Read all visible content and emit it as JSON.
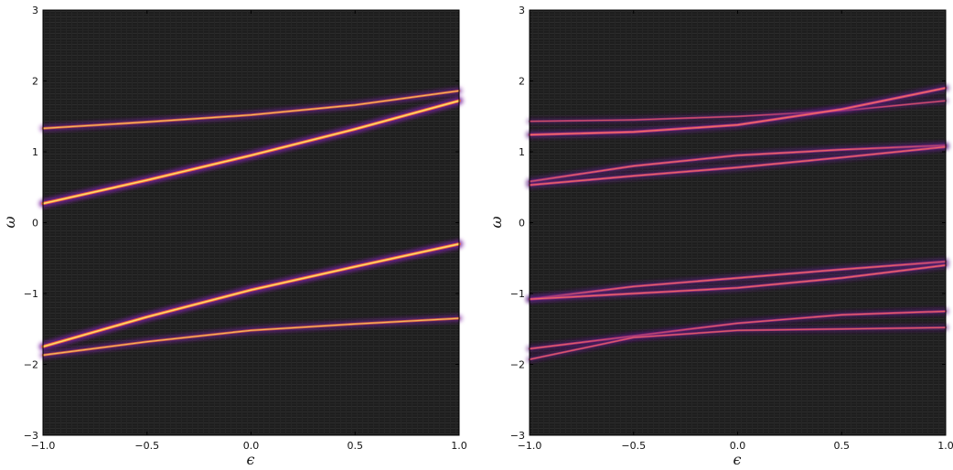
{
  "chart_data": [
    {
      "type": "line",
      "background_color": "#262626",
      "line_colors": {
        "core": "#ffe066",
        "mid": "#ff6a3a",
        "glow": "#7a1fa0"
      },
      "xlabel": "ϵ",
      "ylabel": "ω",
      "xlim": [
        -1.0,
        1.0
      ],
      "ylim": [
        -3,
        3
      ],
      "xticks": [
        -1.0,
        -0.5,
        0.0,
        0.5,
        1.0
      ],
      "xtick_labels": [
        "−1.0",
        "−0.5",
        "0.0",
        "0.5",
        "1.0"
      ],
      "yticks": [
        -3,
        -2,
        -1,
        0,
        1,
        2,
        3
      ],
      "ytick_labels": [
        "−3",
        "−2",
        "−1",
        "0",
        "1",
        "2",
        "3"
      ],
      "grid": false,
      "x": [
        -1.0,
        -0.5,
        0.0,
        0.5,
        1.0
      ],
      "series": [
        {
          "values": [
            1.33,
            1.42,
            1.52,
            1.66,
            1.86
          ],
          "intensity": 0.6
        },
        {
          "values": [
            0.27,
            0.6,
            0.95,
            1.32,
            1.72
          ],
          "intensity": 1.0
        },
        {
          "values": [
            -1.75,
            -1.33,
            -0.95,
            -0.62,
            -0.3
          ],
          "intensity": 1.0
        },
        {
          "values": [
            -1.87,
            -1.68,
            -1.52,
            -1.43,
            -1.35
          ],
          "intensity": 0.6
        }
      ]
    },
    {
      "type": "line",
      "background_color": "#262626",
      "line_colors": {
        "core": "#ff7a5a",
        "mid": "#d0388a",
        "glow": "#5a1a80"
      },
      "xlabel": "ϵ",
      "ylabel": "ω",
      "xlim": [
        -1.0,
        1.0
      ],
      "ylim": [
        -3,
        3
      ],
      "xticks": [
        -1.0,
        -0.5,
        0.0,
        0.5,
        1.0
      ],
      "xtick_labels": [
        "−1.0",
        "−0.5",
        "0.0",
        "0.5",
        "1.0"
      ],
      "yticks": [
        -3,
        -2,
        -1,
        0,
        1,
        2,
        3
      ],
      "ytick_labels": [
        "−3",
        "−2",
        "−1",
        "0",
        "1",
        "2",
        "3"
      ],
      "grid": false,
      "x": [
        -1.0,
        -0.5,
        0.0,
        0.5,
        1.0
      ],
      "series": [
        {
          "values": [
            1.43,
            1.45,
            1.5,
            1.58,
            1.72
          ],
          "intensity": 0.35
        },
        {
          "values": [
            1.24,
            1.28,
            1.38,
            1.6,
            1.9
          ],
          "intensity": 0.75
        },
        {
          "values": [
            0.58,
            0.8,
            0.95,
            1.03,
            1.09
          ],
          "intensity": 0.6
        },
        {
          "values": [
            0.53,
            0.66,
            0.78,
            0.92,
            1.07
          ],
          "intensity": 0.6
        },
        {
          "values": [
            -1.08,
            -0.9,
            -0.78,
            -0.66,
            -0.55
          ],
          "intensity": 0.6
        },
        {
          "values": [
            -1.08,
            -1.0,
            -0.92,
            -0.78,
            -0.6
          ],
          "intensity": 0.6
        },
        {
          "values": [
            -1.78,
            -1.6,
            -1.42,
            -1.3,
            -1.25
          ],
          "intensity": 0.55
        },
        {
          "values": [
            -1.93,
            -1.62,
            -1.52,
            -1.5,
            -1.48
          ],
          "intensity": 0.45
        }
      ]
    }
  ]
}
